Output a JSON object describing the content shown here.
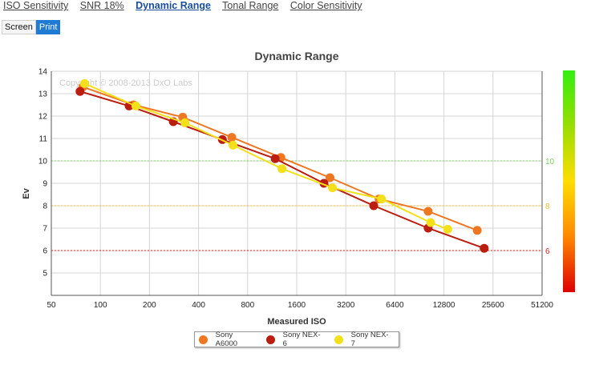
{
  "tabs": [
    {
      "label": "ISO Sensitivity",
      "active": false
    },
    {
      "label": "SNR 18%",
      "active": false
    },
    {
      "label": "Dynamic Range",
      "active": true
    },
    {
      "label": "Tonal Range",
      "active": false
    },
    {
      "label": "Color Sensitivity",
      "active": false
    }
  ],
  "modes": [
    {
      "label": "Screen",
      "active": false
    },
    {
      "label": "Print",
      "active": true
    }
  ],
  "chart_data": {
    "type": "line",
    "title": "Dynamic Range",
    "watermark": "Copyright © 2008-2013 DxO Labs",
    "xlabel": "Measured ISO",
    "ylabel": "Ev",
    "x_scale": "log2",
    "xlim": [
      50,
      51200
    ],
    "ylim": [
      4,
      14
    ],
    "x_ticks": [
      50,
      100,
      200,
      400,
      800,
      1600,
      3200,
      6400,
      12800,
      25600,
      51200
    ],
    "y_ticks": [
      5,
      6,
      7,
      8,
      9,
      10,
      11,
      12,
      13,
      14
    ],
    "grid": true,
    "legend_position": "bottom-center",
    "reference_lines": [
      {
        "value": 10,
        "label": "10",
        "color": "#7dd35f"
      },
      {
        "value": 8,
        "label": "8",
        "color": "#f0c030"
      },
      {
        "value": 6,
        "label": "6",
        "color": "#d42020"
      }
    ],
    "colorbar_colors": [
      "#33ee11",
      "#99dd00",
      "#ffdd00",
      "#ff8800",
      "#dd0000"
    ],
    "series": [
      {
        "name": "Sony A6000",
        "color": "#ee7722",
        "points": [
          [
            78,
            13.3
          ],
          [
            160,
            12.5
          ],
          [
            320,
            11.95
          ],
          [
            640,
            11.05
          ],
          [
            1280,
            10.15
          ],
          [
            2560,
            9.25
          ],
          [
            5120,
            8.3
          ],
          [
            10240,
            7.75
          ],
          [
            20480,
            6.9
          ]
        ]
      },
      {
        "name": "Sony NEX-6",
        "color": "#bb1d10",
        "points": [
          [
            75,
            13.1
          ],
          [
            150,
            12.45
          ],
          [
            280,
            11.75
          ],
          [
            560,
            10.95
          ],
          [
            1180,
            10.1
          ],
          [
            2350,
            9.0
          ],
          [
            4750,
            8.0
          ],
          [
            10240,
            7.0
          ],
          [
            22600,
            6.1
          ]
        ]
      },
      {
        "name": "Sony NEX-7",
        "color": "#f3e01a",
        "points": [
          [
            80,
            13.45
          ],
          [
            165,
            12.45
          ],
          [
            330,
            11.7
          ],
          [
            650,
            10.7
          ],
          [
            1300,
            9.65
          ],
          [
            2650,
            8.8
          ],
          [
            5300,
            8.3
          ],
          [
            10600,
            7.25
          ],
          [
            13500,
            6.95
          ]
        ]
      }
    ]
  }
}
